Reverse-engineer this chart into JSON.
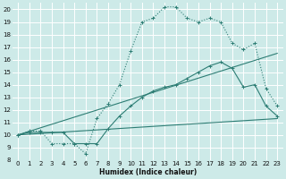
{
  "xlabel": "Humidex (Indice chaleur)",
  "bg_color": "#cdeae8",
  "grid_color": "#ffffff",
  "line_color": "#2d7d74",
  "xlim": [
    -0.5,
    23.5
  ],
  "ylim": [
    8,
    20.5
  ],
  "xticks": [
    0,
    1,
    2,
    3,
    4,
    5,
    6,
    7,
    8,
    9,
    10,
    11,
    12,
    13,
    14,
    15,
    16,
    17,
    18,
    19,
    20,
    21,
    22,
    23
  ],
  "yticks": [
    8,
    9,
    10,
    11,
    12,
    13,
    14,
    15,
    16,
    17,
    18,
    19,
    20
  ],
  "line1_x": [
    0,
    1,
    2,
    3,
    4,
    5,
    6,
    7,
    8,
    9,
    10,
    11,
    12,
    13,
    14,
    15,
    16,
    17,
    18,
    19,
    20,
    21,
    22,
    23
  ],
  "line1_y": [
    10,
    10.3,
    10.3,
    9.3,
    9.3,
    9.3,
    8.5,
    11.3,
    12.5,
    14,
    16.7,
    19,
    19.3,
    20.2,
    20.2,
    19.3,
    19,
    19.3,
    19.0,
    17.3,
    16.8,
    17.3,
    13.7,
    12.3
  ],
  "line2_x": [
    0,
    1,
    2,
    3,
    4,
    5,
    6,
    7,
    8,
    9,
    10,
    11,
    12,
    13,
    14,
    15,
    16,
    17,
    18,
    19,
    20,
    21,
    22,
    23
  ],
  "line2_y": [
    10,
    10.2,
    10.2,
    10.2,
    10.2,
    9.3,
    9.3,
    9.3,
    10.5,
    11.5,
    12.3,
    13.0,
    13.5,
    13.8,
    14.0,
    14.5,
    15.0,
    15.5,
    15.8,
    15.3,
    13.8,
    14.0,
    12.3,
    11.5
  ],
  "line3_x": [
    0,
    23
  ],
  "line3_y": [
    10,
    16.5
  ],
  "line4_x": [
    0,
    23
  ],
  "line4_y": [
    10,
    11.3
  ]
}
